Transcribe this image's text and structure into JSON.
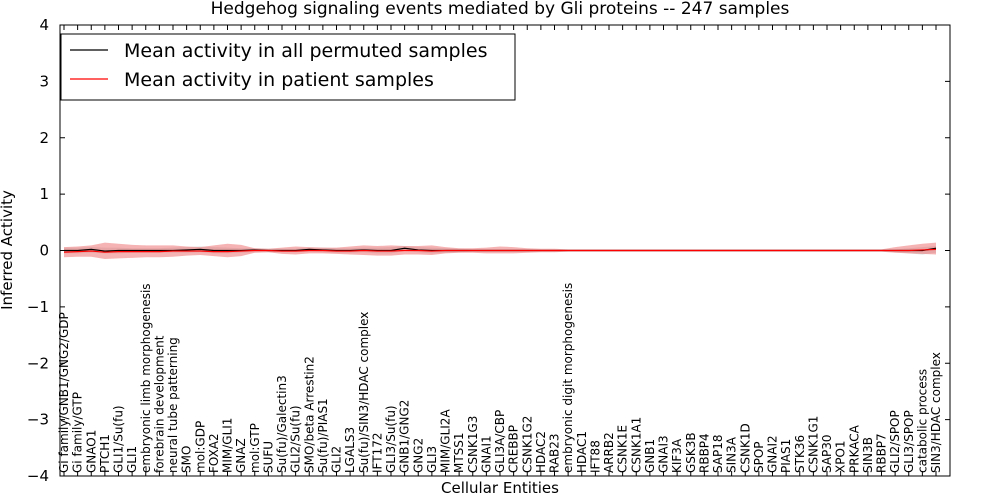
{
  "chart_data": {
    "type": "line",
    "title": "Hedgehog signaling events mediated by Gli proteins -- 247 samples",
    "xlabel": "Cellular Entities",
    "ylabel": "Inferred Activity",
    "ylim": [
      -4,
      4
    ],
    "yticks": [
      -4,
      -3,
      -2,
      -1,
      0,
      1,
      2,
      3,
      4
    ],
    "ytick_labels": [
      "−4",
      "−3",
      "−2",
      "−1",
      "0",
      "1",
      "2",
      "3",
      "4"
    ],
    "grid": false,
    "legend_position": "top-left",
    "categories": [
      "Gi family/GNB1/GNG2/GDP",
      "Gi family/GTP",
      "GNAO1",
      "PTCH1",
      "GLI1/Su(fu)",
      "GLI1",
      "embryonic limb morphogenesis",
      "forebrain development",
      "neural tube patterning",
      "SMO",
      "mol:GDP",
      "FOXA2",
      "MIM/GLI1",
      "GNAZ",
      "mol:GTP",
      "SUFU",
      "Su(fu)/Galectin3",
      "GLI2/Su(fu)",
      "SMO/beta Arrestin2",
      "Su(fu)/PIAS1",
      "GLI2",
      "LGALS3",
      "Su(fu)/SIN3/HDAC complex",
      "IFT172",
      "GLI3/Su(fu)",
      "GNB1/GNG2",
      "GNG2",
      "GLI3",
      "MIM/GLI2A",
      "MTSS1",
      "CSNK1G3",
      "GNAI1",
      "GLI3A/CBP",
      "CREBBP",
      "CSNK1G2",
      "HDAC2",
      "RAB23",
      "embryonic digit morphogenesis",
      "HDAC1",
      "IFT88",
      "ARRB2",
      "CSNK1E",
      "CSNK1A1",
      "GNB1",
      "GNAI3",
      "KIF3A",
      "GSK3B",
      "RBBP4",
      "SAP18",
      "SIN3A",
      "CSNK1D",
      "SPOP",
      "GNAI2",
      "PIAS1",
      "STK36",
      "CSNK1G1",
      "SAP30",
      "XPO1",
      "PRKACA",
      "SIN3B",
      "RBBP7",
      "GLI2/SPOP",
      "GLI3/SPOP",
      "catabolic process",
      "SIN3/HDAC complex"
    ],
    "series": [
      {
        "name": "Mean activity in all permuted samples",
        "color": "#000000",
        "values": [
          0.0,
          0.0,
          0.02,
          -0.01,
          0.0,
          0.0,
          0.0,
          0.0,
          0.0,
          0.01,
          0.02,
          0.0,
          0.0,
          0.0,
          0.01,
          0.0,
          0.0,
          0.0,
          0.02,
          0.01,
          0.0,
          0.0,
          0.01,
          0.0,
          0.0,
          0.04,
          0.01,
          0.0,
          0.0,
          0.0,
          0.0,
          0.0,
          0.0,
          0.0,
          0.0,
          0.0,
          0.0,
          0.0,
          0.0,
          0.0,
          0.0,
          0.0,
          0.0,
          0.0,
          0.0,
          0.0,
          0.0,
          0.0,
          0.0,
          0.0,
          0.0,
          0.0,
          0.0,
          0.0,
          0.0,
          0.0,
          0.0,
          0.0,
          0.0,
          0.0,
          0.0,
          0.0,
          0.0,
          0.0,
          0.04
        ],
        "band_upper": [
          0.05,
          0.05,
          0.06,
          0.05,
          0.05,
          0.04,
          0.04,
          0.04,
          0.05,
          0.06,
          0.07,
          0.06,
          0.05,
          0.04,
          0.04,
          0.03,
          0.03,
          0.03,
          0.05,
          0.05,
          0.04,
          0.04,
          0.05,
          0.05,
          0.06,
          0.08,
          0.06,
          0.05,
          0.04,
          0.03,
          0.02,
          0.02,
          0.02,
          0.02,
          0.02,
          0.01,
          0.01,
          0.01,
          0.01,
          0.01,
          0.01,
          0.01,
          0.01,
          0.01,
          0.01,
          0.01,
          0.01,
          0.01,
          0.01,
          0.01,
          0.01,
          0.01,
          0.01,
          0.01,
          0.01,
          0.01,
          0.01,
          0.01,
          0.01,
          0.01,
          0.01,
          0.02,
          0.04,
          0.06,
          0.08
        ],
        "band_lower": [
          -0.05,
          -0.05,
          -0.04,
          -0.05,
          -0.05,
          -0.04,
          -0.04,
          -0.04,
          -0.04,
          -0.04,
          -0.03,
          -0.05,
          -0.05,
          -0.04,
          -0.03,
          -0.03,
          -0.03,
          -0.03,
          -0.02,
          -0.03,
          -0.04,
          -0.04,
          -0.03,
          -0.05,
          -0.05,
          -0.01,
          -0.03,
          -0.05,
          -0.04,
          -0.03,
          -0.02,
          -0.02,
          -0.02,
          -0.02,
          -0.02,
          -0.01,
          -0.01,
          -0.01,
          -0.01,
          -0.01,
          -0.01,
          -0.01,
          -0.01,
          -0.01,
          -0.01,
          -0.01,
          -0.01,
          -0.01,
          -0.01,
          -0.01,
          -0.01,
          -0.01,
          -0.01,
          -0.01,
          -0.01,
          -0.01,
          -0.01,
          -0.01,
          -0.01,
          -0.01,
          -0.01,
          -0.03,
          -0.05,
          -0.07,
          -0.04
        ]
      },
      {
        "name": "Mean activity in patient samples",
        "color": "#ff0000",
        "values": [
          -0.03,
          -0.02,
          -0.01,
          -0.03,
          -0.02,
          -0.02,
          -0.02,
          -0.02,
          -0.01,
          -0.01,
          -0.01,
          -0.02,
          -0.02,
          -0.01,
          0.0,
          0.0,
          -0.01,
          -0.01,
          0.0,
          0.0,
          -0.01,
          -0.01,
          0.0,
          -0.01,
          -0.01,
          0.0,
          0.0,
          -0.01,
          0.0,
          0.0,
          0.0,
          0.0,
          0.0,
          0.0,
          0.0,
          0.0,
          0.0,
          0.0,
          0.0,
          0.0,
          0.0,
          0.0,
          0.0,
          0.0,
          0.0,
          0.0,
          0.0,
          0.0,
          0.0,
          0.0,
          0.0,
          0.0,
          0.0,
          0.0,
          0.0,
          0.0,
          0.0,
          0.0,
          0.0,
          0.0,
          0.0,
          0.0,
          0.0,
          0.01,
          0.02
        ],
        "band_upper": [
          0.06,
          0.07,
          0.09,
          0.14,
          0.12,
          0.1,
          0.09,
          0.09,
          0.09,
          0.07,
          0.06,
          0.09,
          0.12,
          0.1,
          0.04,
          0.03,
          0.05,
          0.07,
          0.06,
          0.05,
          0.05,
          0.07,
          0.09,
          0.08,
          0.09,
          0.08,
          0.08,
          0.09,
          0.06,
          0.04,
          0.04,
          0.05,
          0.07,
          0.06,
          0.04,
          0.03,
          0.03,
          0.02,
          0.02,
          0.02,
          0.02,
          0.02,
          0.02,
          0.02,
          0.02,
          0.02,
          0.02,
          0.02,
          0.02,
          0.02,
          0.02,
          0.02,
          0.02,
          0.02,
          0.02,
          0.02,
          0.02,
          0.02,
          0.02,
          0.02,
          0.02,
          0.06,
          0.09,
          0.12,
          0.14
        ],
        "band_lower": [
          -0.12,
          -0.11,
          -0.11,
          -0.15,
          -0.14,
          -0.13,
          -0.12,
          -0.12,
          -0.11,
          -0.09,
          -0.08,
          -0.1,
          -0.12,
          -0.1,
          -0.04,
          -0.03,
          -0.06,
          -0.07,
          -0.05,
          -0.05,
          -0.06,
          -0.07,
          -0.08,
          -0.09,
          -0.09,
          -0.07,
          -0.07,
          -0.08,
          -0.05,
          -0.04,
          -0.04,
          -0.05,
          -0.05,
          -0.05,
          -0.04,
          -0.03,
          -0.03,
          -0.02,
          -0.02,
          -0.02,
          -0.02,
          -0.02,
          -0.02,
          -0.02,
          -0.02,
          -0.02,
          -0.02,
          -0.02,
          -0.02,
          -0.02,
          -0.02,
          -0.02,
          -0.02,
          -0.02,
          -0.02,
          -0.02,
          -0.02,
          -0.02,
          -0.02,
          -0.02,
          -0.02,
          -0.04,
          -0.05,
          -0.06,
          -0.07
        ]
      }
    ]
  }
}
